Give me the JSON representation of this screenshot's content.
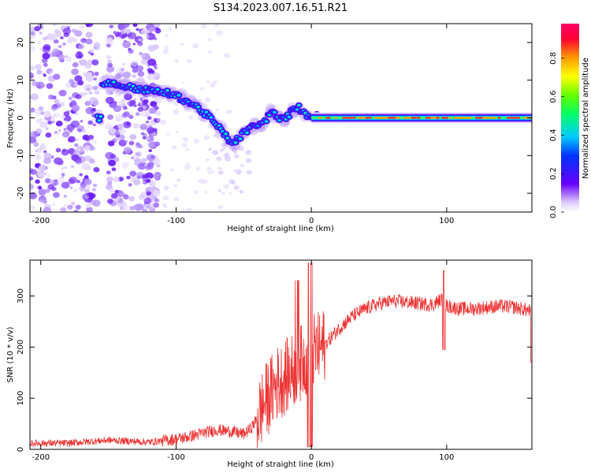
{
  "title": "S134.2023.007.16.51.R21",
  "chart_data": [
    {
      "type": "heatmap",
      "xlabel": "Height of straight line (km)",
      "ylabel": "Frequency (Hz)",
      "xlim": [
        -208,
        163
      ],
      "ylim": [
        -25,
        25
      ],
      "xticks": [
        -200,
        -100,
        0,
        100
      ],
      "yticks": [
        -20,
        -10,
        0,
        10,
        20
      ],
      "colorbar": {
        "label": "Normalized spectral amplitude",
        "range": [
          0,
          1
        ],
        "ticks": [
          "0.0",
          "0.2",
          "0.4",
          "0.6",
          "0.8"
        ]
      },
      "ridge": {
        "x": [
          -155,
          -140,
          -125,
          -115,
          -105,
          -95,
          -85,
          -75,
          -65,
          -58,
          -50,
          -42,
          -35,
          -30,
          -25,
          -20,
          -15,
          -10,
          -5,
          0,
          20,
          50,
          100,
          163
        ],
        "y": [
          9.5,
          8.5,
          7.5,
          7,
          6.5,
          5,
          3,
          0,
          -4,
          -7,
          -4,
          -2,
          -1.5,
          2,
          0,
          -0.5,
          1.5,
          3,
          1,
          0.5,
          0,
          0,
          0,
          0
        ]
      }
    },
    {
      "type": "line",
      "xlabel": "Height of straight line (km)",
      "ylabel": "SNR (10 * v/v)",
      "xlim": [
        -208,
        163
      ],
      "ylim": [
        0,
        370
      ],
      "xticks": [
        -200,
        -100,
        0,
        100
      ],
      "yticks": [
        0,
        100,
        200,
        300
      ],
      "color": "#ee3333",
      "series": [
        {
          "x": [
            -208,
            -180,
            -150,
            -120,
            -100,
            -90,
            -80,
            -70,
            -60,
            -50,
            -45,
            -40,
            -35,
            -30,
            -25,
            -20,
            -15,
            -10,
            -5,
            0,
            5,
            10,
            20,
            30,
            40,
            50,
            60,
            70,
            80,
            90,
            97,
            100,
            110,
            120,
            130,
            140,
            150,
            163
          ],
          "y": [
            12,
            12,
            18,
            14,
            20,
            25,
            32,
            38,
            35,
            30,
            40,
            60,
            90,
            110,
            130,
            140,
            150,
            165,
            175,
            190,
            195,
            205,
            235,
            260,
            275,
            285,
            290,
            288,
            285,
            283,
            295,
            280,
            275,
            275,
            278,
            280,
            278,
            270
          ]
        }
      ]
    }
  ]
}
